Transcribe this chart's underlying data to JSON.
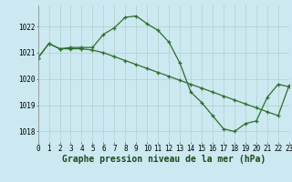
{
  "title": "Graphe pression niveau de la mer (hPa)",
  "background_color": "#cce8f0",
  "grid_color": "#aad4cc",
  "line_color": "#2d6e2d",
  "marker": "+",
  "line1_x": [
    0,
    1,
    2,
    3,
    4,
    5,
    6,
    7,
    8,
    9,
    10,
    11,
    12,
    13,
    14,
    15,
    16,
    17,
    18,
    19,
    20,
    21,
    22,
    23
  ],
  "line1_y": [
    1020.8,
    1021.35,
    1021.15,
    1021.2,
    1021.2,
    1021.2,
    1021.7,
    1021.95,
    1022.35,
    1022.4,
    1022.1,
    1021.85,
    1021.4,
    1020.6,
    1019.5,
    1019.1,
    1018.6,
    1018.1,
    1018.0,
    1018.3,
    1018.4,
    1019.3,
    1019.8,
    1019.7
  ],
  "line2_x": [
    0,
    1,
    2,
    3,
    4,
    5,
    6,
    7,
    8,
    9,
    10,
    11,
    12,
    13,
    14,
    15,
    16,
    17,
    18,
    19,
    20,
    21,
    22,
    23
  ],
  "line2_y": [
    1020.8,
    1021.35,
    1021.15,
    1021.15,
    1021.15,
    1021.1,
    1021.0,
    1020.85,
    1020.7,
    1020.55,
    1020.4,
    1020.25,
    1020.1,
    1019.95,
    1019.8,
    1019.65,
    1019.5,
    1019.35,
    1019.2,
    1019.05,
    1018.9,
    1018.75,
    1018.6,
    1019.75
  ],
  "xlim": [
    0,
    23
  ],
  "ylim": [
    1017.6,
    1022.8
  ],
  "yticks": [
    1018,
    1019,
    1020,
    1021,
    1022
  ],
  "xticks": [
    0,
    1,
    2,
    3,
    4,
    5,
    6,
    7,
    8,
    9,
    10,
    11,
    12,
    13,
    14,
    15,
    16,
    17,
    18,
    19,
    20,
    21,
    22,
    23
  ],
  "xtick_labels": [
    "0",
    "1",
    "2",
    "3",
    "4",
    "5",
    "6",
    "7",
    "8",
    "9",
    "10",
    "11",
    "12",
    "13",
    "14",
    "15",
    "16",
    "17",
    "18",
    "19",
    "20",
    "21",
    "22",
    "23"
  ],
  "font_size_title": 7,
  "font_size_ticks": 5.5,
  "linewidth": 0.9,
  "markersize": 3.5,
  "markeredgewidth": 0.9
}
